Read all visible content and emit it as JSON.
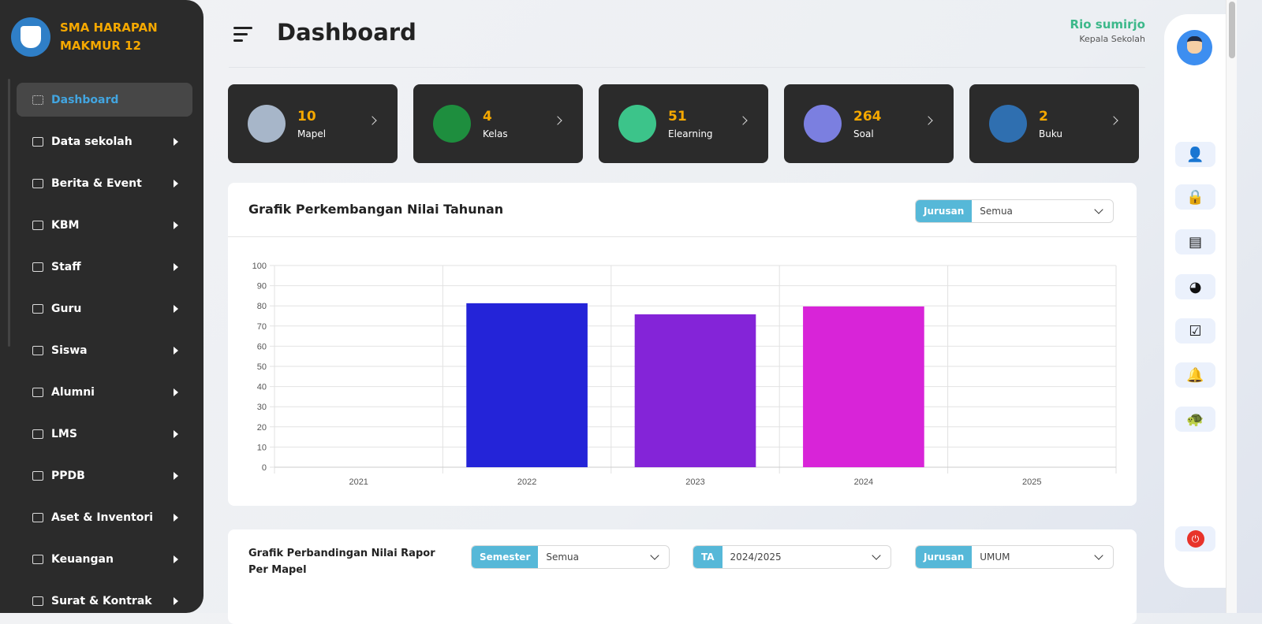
{
  "brand": {
    "name": "SMA HARAPAN MAKMUR 12"
  },
  "sidebar": {
    "items": [
      {
        "label": "Dashboard",
        "active": true
      },
      {
        "label": "Data sekolah"
      },
      {
        "label": "Berita & Event"
      },
      {
        "label": "KBM"
      },
      {
        "label": "Staff"
      },
      {
        "label": "Guru"
      },
      {
        "label": "Siswa"
      },
      {
        "label": "Alumni"
      },
      {
        "label": "LMS"
      },
      {
        "label": "PPDB"
      },
      {
        "label": "Aset & Inventori"
      },
      {
        "label": "Keuangan"
      },
      {
        "label": "Surat & Kontrak"
      }
    ]
  },
  "header": {
    "title": "Dashboard",
    "user_name": "Rio sumirjo",
    "user_role": "Kepala Sekolah"
  },
  "cards": [
    {
      "value": "10",
      "label": "Mapel",
      "icon": "lab-icon",
      "color": "#a7b6c9"
    },
    {
      "value": "4",
      "label": "Kelas",
      "icon": "classroom-icon",
      "color": "#1e8e3e"
    },
    {
      "value": "51",
      "label": "Elearning",
      "icon": "quiz-icon",
      "color": "#3cc48a"
    },
    {
      "value": "264",
      "label": "Soal",
      "icon": "question-chat-icon",
      "color": "#7b7fe0"
    },
    {
      "value": "2",
      "label": "Buku",
      "icon": "books-icon",
      "color": "#2f6fb0"
    }
  ],
  "chart_panel": {
    "title": "Grafik Perkembangan Nilai Tahunan",
    "filter_label": "Jurusan",
    "filter_value": "Semua"
  },
  "chart_data": {
    "type": "bar",
    "categories": [
      "2021",
      "2022",
      "2023",
      "2024",
      "2025"
    ],
    "values": [
      null,
      81.3,
      75.8,
      79.7,
      null
    ],
    "colors": [
      "#2424d8",
      "#2424d8",
      "#8424d8",
      "#d824d8",
      "#d824d8"
    ],
    "ylim": [
      0,
      100
    ],
    "yticks": [
      0,
      10,
      20,
      30,
      40,
      50,
      60,
      70,
      80,
      90,
      100
    ],
    "grid": true
  },
  "compare_panel": {
    "title": "Grafik Perbandingan Nilai Rapor Per Mapel",
    "filters": [
      {
        "label": "Semester",
        "value": "Semua"
      },
      {
        "label": "TA",
        "value": "2024/2025"
      },
      {
        "label": "Jurusan",
        "value": "UMUM"
      }
    ]
  },
  "rightbar": {
    "icons": [
      "user-edit-icon",
      "lock-icon",
      "report-icon",
      "pie-chart-icon",
      "checklist-icon",
      "bell-icon",
      "turtle-icon"
    ],
    "glyphs": [
      "👤",
      "🔒",
      "▤",
      "◕",
      "☑",
      "🔔",
      "🐢"
    ],
    "logout": "⏻"
  }
}
